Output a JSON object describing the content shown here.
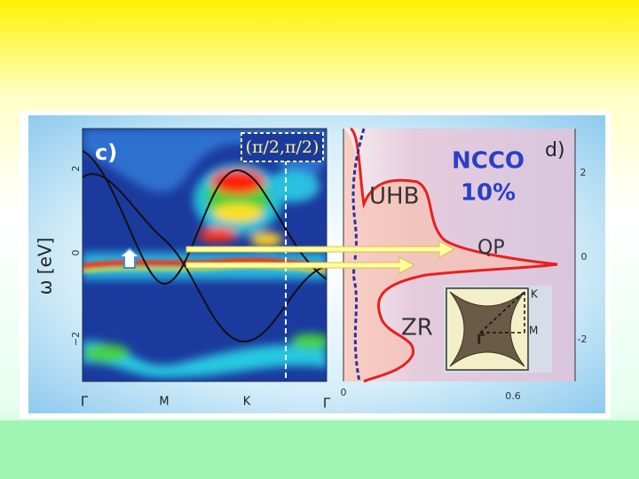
{
  "panel_c": {
    "label": "c)",
    "k_label": "(π/2,π/2)",
    "y_axis_label": "ω [eV]",
    "y_ticks": [
      "2",
      "0",
      "−2"
    ],
    "x_ticks": [
      "Γ",
      "M",
      "K",
      "Γ"
    ]
  },
  "panel_d": {
    "label": "d)",
    "material": "NCCO",
    "doping": "10%",
    "features": [
      "UHB",
      "QP",
      "ZR"
    ],
    "x_ticks": [
      "0",
      "0.6"
    ],
    "y_ticks": [
      "2",
      "0",
      "-2"
    ],
    "inset_labels": [
      "K",
      "M",
      "Γ"
    ]
  }
}
